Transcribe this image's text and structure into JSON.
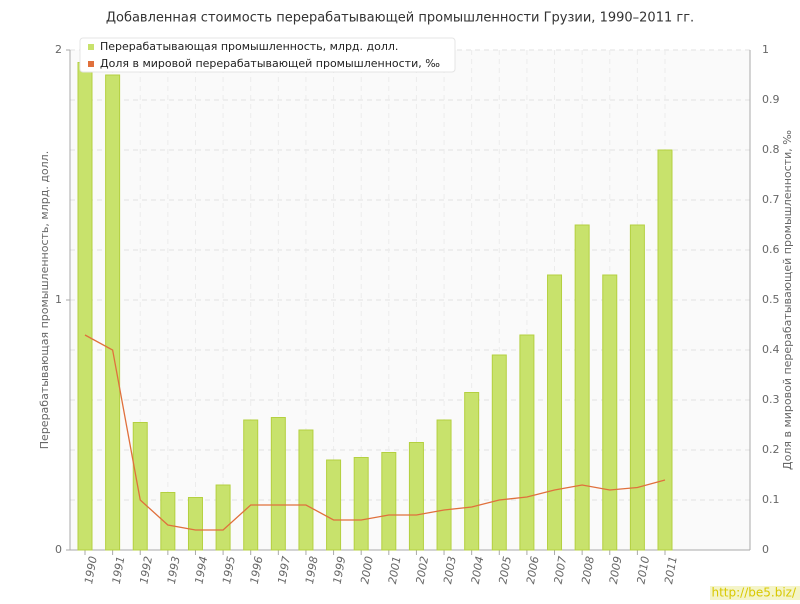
{
  "chart_data": {
    "type": "bar",
    "title": "Добавленная стоимость перерабатывающей промышленности Грузии, 1990–2011 гг.",
    "y_label": "Перерабатывающая промышленность, млрд. долл.",
    "y2_label": "Доля в мировой перерабатывающей промышленности, ‰",
    "watermark": "http://be5.biz/",
    "categories": [
      "1990",
      "1991",
      "1992",
      "1993",
      "1994",
      "1995",
      "1996",
      "1997",
      "1998",
      "1999",
      "2000",
      "2001",
      "2002",
      "2003",
      "2004",
      "2005",
      "2006",
      "2007",
      "2008",
      "2009",
      "2010",
      "2011"
    ],
    "series": [
      {
        "name": "Перерабатывающая промышленность, млрд. долл.",
        "type": "bar",
        "color": "#c8e26c",
        "values": [
          1.95,
          1.9,
          0.51,
          0.23,
          0.21,
          0.26,
          0.52,
          0.53,
          0.48,
          0.36,
          0.37,
          0.39,
          0.43,
          0.52,
          0.63,
          0.78,
          0.86,
          1.1,
          1.3,
          1.1,
          1.3,
          1.6
        ]
      },
      {
        "name": "Доля в мировой перерабатывающей промышленности, ‰",
        "type": "line",
        "axis": "y2",
        "color": "#e0703c",
        "values": [
          0.43,
          0.4,
          0.1,
          0.05,
          0.04,
          0.04,
          0.09,
          0.09,
          0.09,
          0.06,
          0.06,
          0.07,
          0.07,
          0.08,
          0.086,
          0.1,
          0.106,
          0.12,
          0.13,
          0.12,
          0.125,
          0.14
        ]
      }
    ],
    "ylim": [
      0,
      2
    ],
    "yticks": [
      0,
      1,
      2
    ],
    "y2lim": [
      0,
      1
    ],
    "y2ticks": [
      0,
      0.1,
      0.2,
      0.3,
      0.4,
      0.5,
      0.6,
      0.7,
      0.8,
      0.9,
      1
    ],
    "grid": true,
    "legend": "top-left"
  }
}
